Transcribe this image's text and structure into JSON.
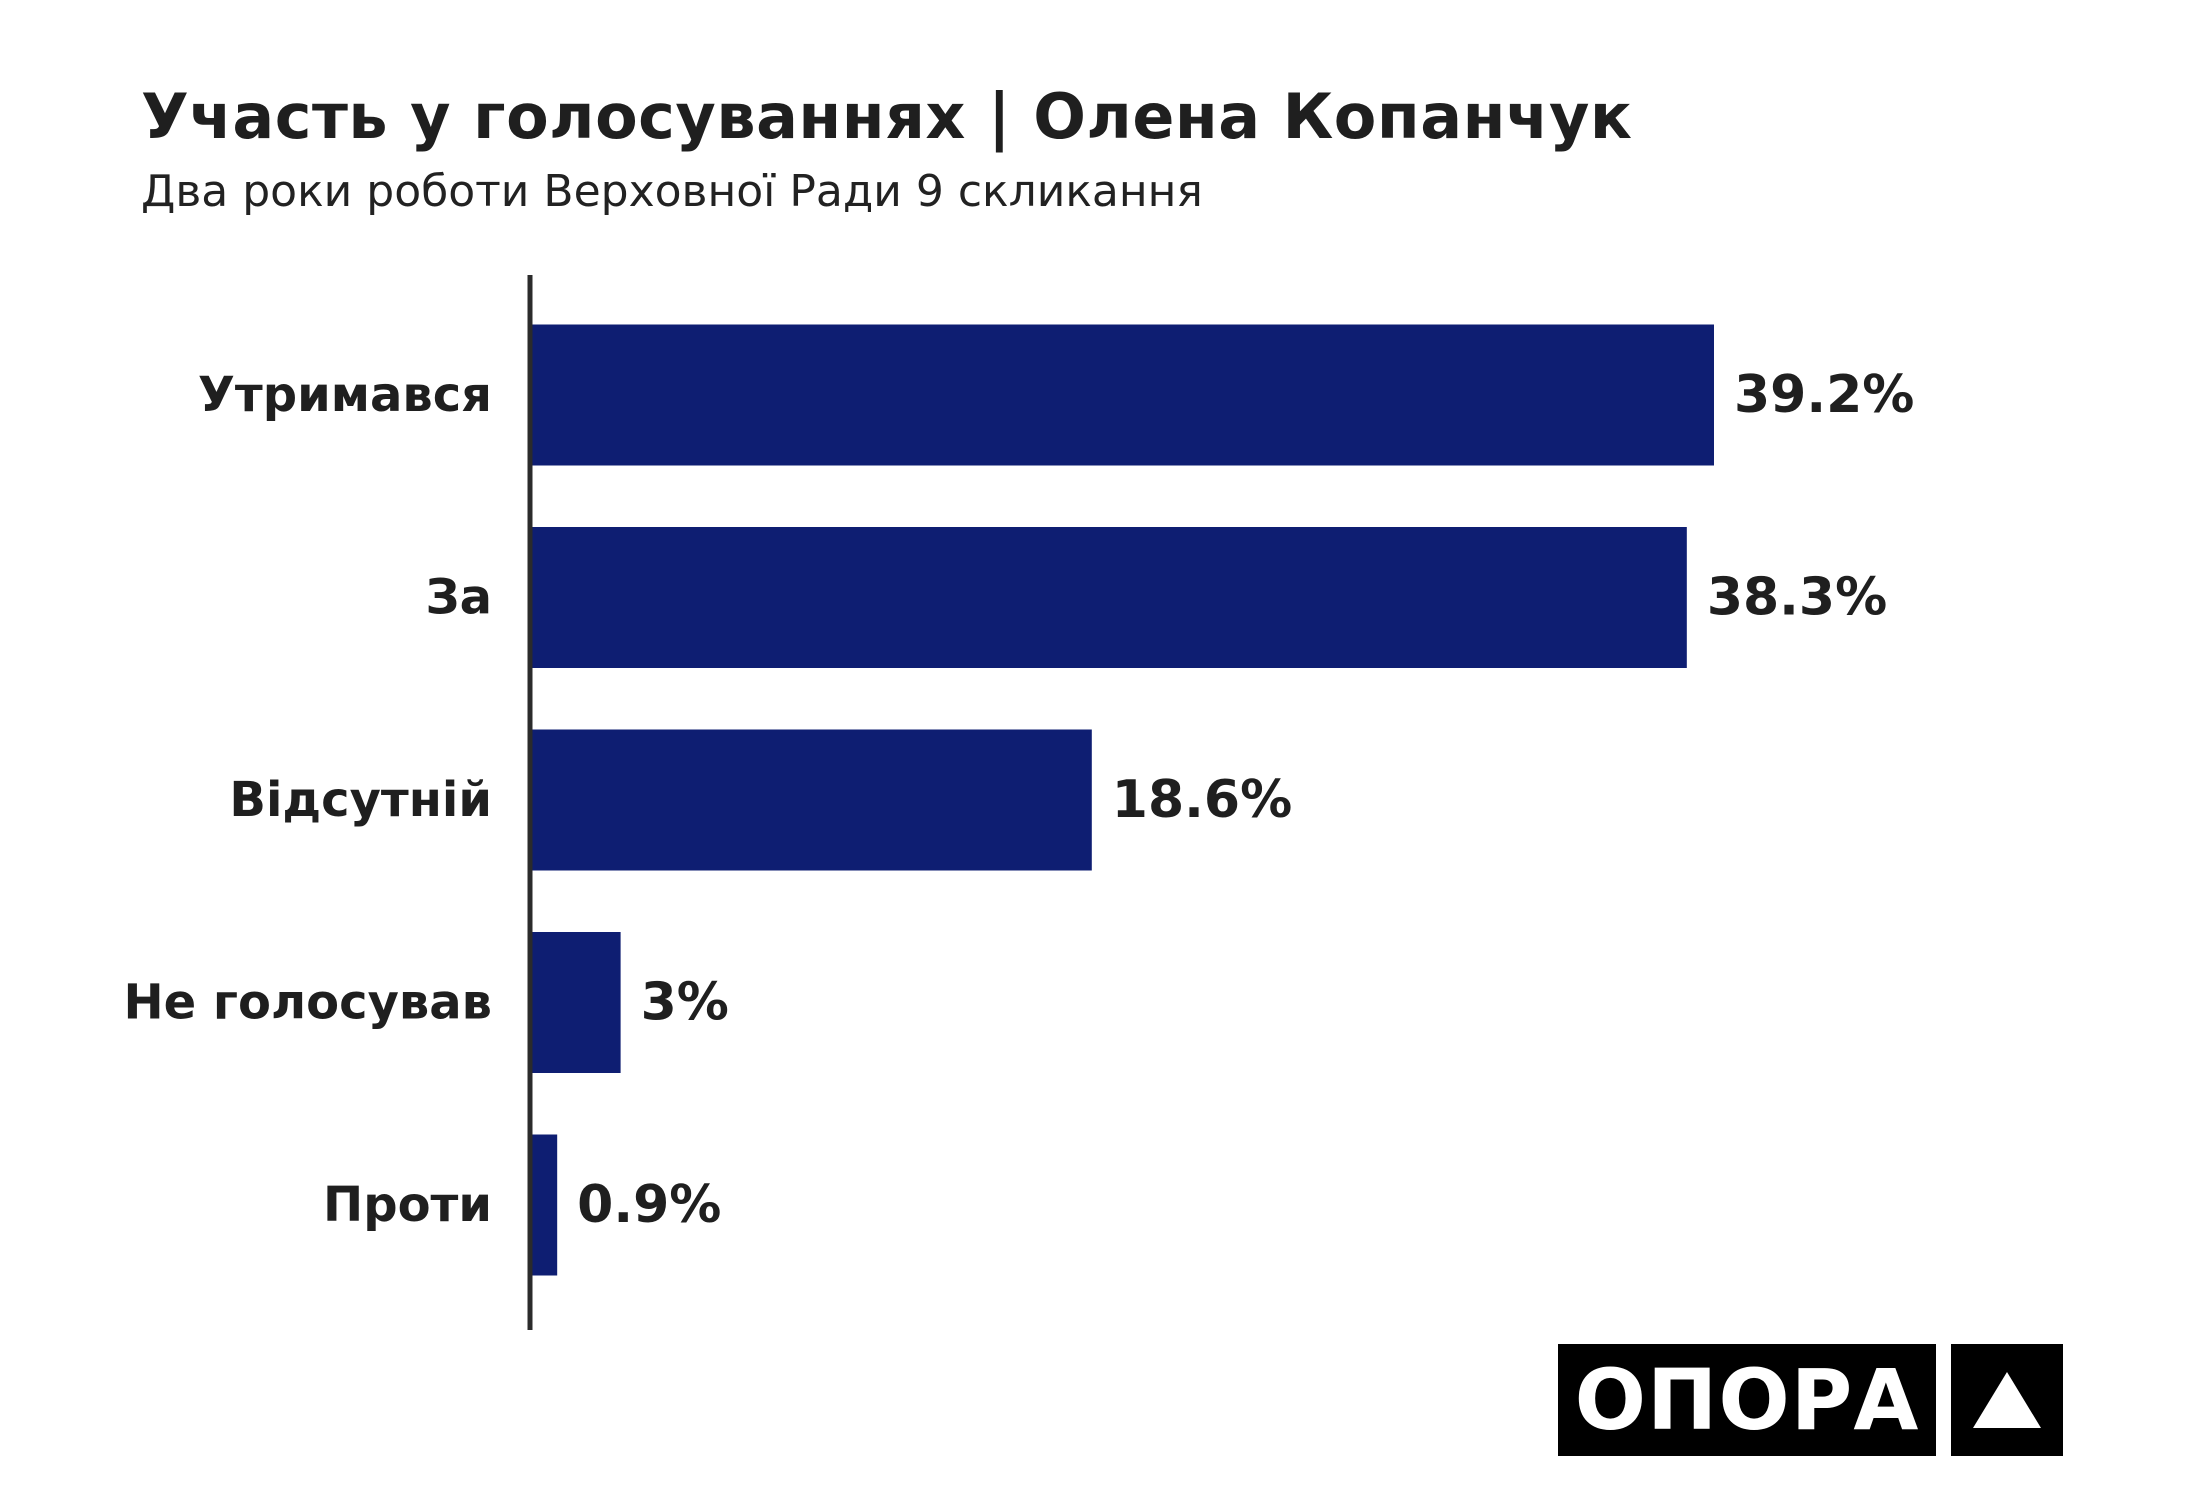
{
  "chart_data": {
    "type": "bar",
    "orientation": "horizontal",
    "title": "Участь у голосуваннях | Олена Копанчук",
    "subtitle": "Два роки роботи Верховної Ради 9 скликання",
    "categories": [
      "Утримався",
      "За",
      "Відсутній",
      "Не голосував",
      "Проти"
    ],
    "values": [
      39.2,
      38.3,
      18.6,
      3,
      0.9
    ],
    "value_labels": [
      "39.2%",
      "38.3%",
      "18.6%",
      "3%",
      "0.9%"
    ],
    "unit": "%",
    "xlim": [
      0,
      39.2
    ],
    "grid": false,
    "bar_color": "#0e1e72",
    "axis_color": "#2b2b2b"
  },
  "branding": {
    "logo_text": "ОПОРА",
    "logo_icon": "triangle-icon"
  }
}
